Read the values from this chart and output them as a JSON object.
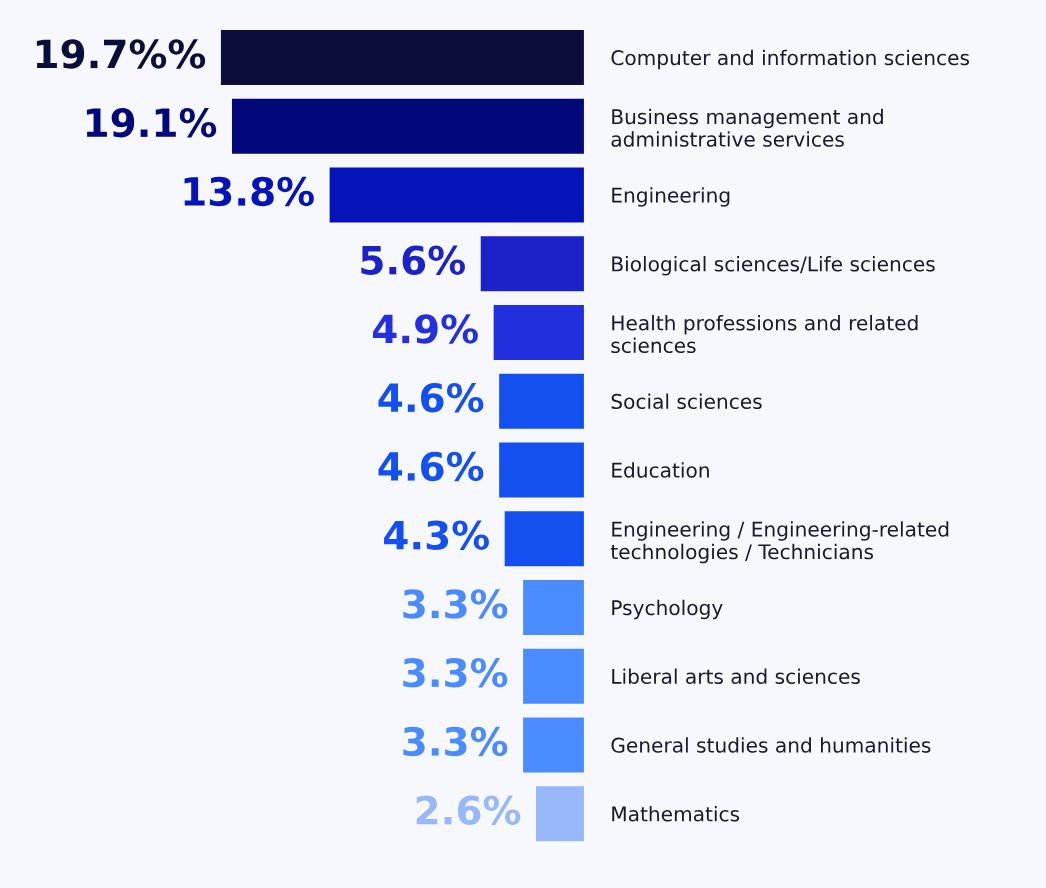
{
  "chart_data": {
    "type": "bar",
    "orientation": "horizontal",
    "categories": [
      "Computer and information sciences",
      "Business management and\nadministrative services",
      "Engineering",
      "Biological sciences/Life sciences",
      "Health professions and related\nsciences",
      "Social sciences",
      "Education",
      "Engineering / Engineering-related\ntechnologies / Technicians",
      "Psychology",
      "Liberal arts and sciences",
      "General studies and humanities",
      "Mathematics"
    ],
    "values": [
      19.7,
      19.1,
      13.8,
      5.6,
      4.9,
      4.6,
      4.6,
      4.3,
      3.3,
      3.3,
      3.3,
      2.6
    ],
    "value_labels": [
      "19.7%%",
      "19.1%",
      "13.8%",
      "5.6%",
      "4.9%",
      "4.6%",
      "4.6%",
      "4.3%",
      "3.3%",
      "3.3%",
      "3.3%",
      "2.6%"
    ],
    "colors": [
      "#0b0e3a",
      "#00087a",
      "#0514b8",
      "#1a22c8",
      "#2230e0",
      "#1450f0",
      "#1450f0",
      "#1450f0",
      "#4a8cff",
      "#4a8cff",
      "#4a8cff",
      "#98b8fa"
    ],
    "grid": false,
    "legend": false
  }
}
